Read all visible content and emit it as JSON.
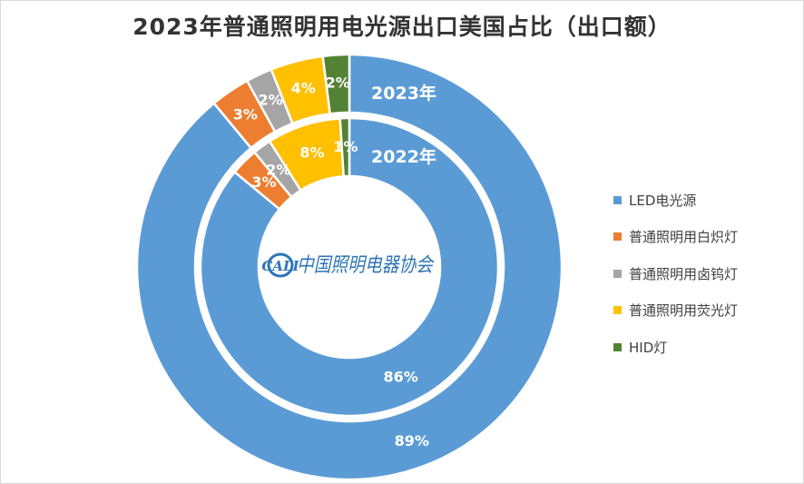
{
  "title": "2023年普通照明用电光源出口美国占比（出口额）",
  "watermark": {
    "logo_text": "CALI",
    "org_name": "中国照明电器协会"
  },
  "chart_data": {
    "type": "doughnut",
    "categories": [
      "LED电光源",
      "普通照明用白炽灯",
      "普通照明用卤钨灯",
      "普通照明用荧光灯",
      "HID灯"
    ],
    "colors": [
      "#5b9bd5",
      "#ed7d31",
      "#a5a5a5",
      "#ffc000",
      "#548235"
    ],
    "series": [
      {
        "name": "2023年",
        "ring": "outer",
        "values": [
          89,
          3,
          2,
          4,
          2
        ],
        "labels": [
          "89%",
          "3%",
          "2%",
          "4%",
          "2%"
        ]
      },
      {
        "name": "2022年",
        "ring": "inner",
        "values": [
          86,
          3,
          2,
          8,
          1
        ],
        "labels": [
          "86%",
          "3%",
          "2%",
          "8%",
          "1%"
        ]
      }
    ],
    "legend_position": "right"
  }
}
